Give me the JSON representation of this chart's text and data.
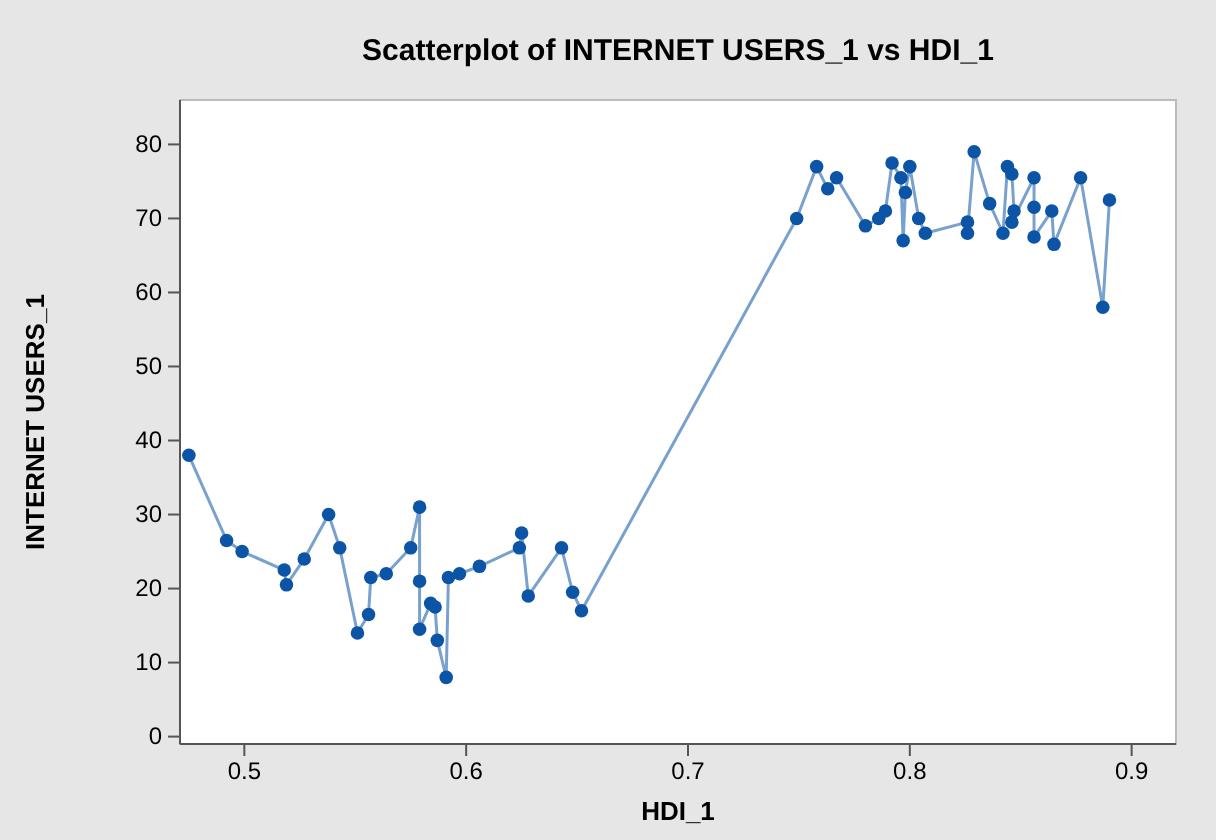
{
  "chart_data": {
    "type": "line",
    "title": "Scatterplot of INTERNET USERS_1 vs HDI_1",
    "xlabel": "HDI_1",
    "ylabel": "INTERNET USERS_1",
    "marker": "circle",
    "line_style": "solid",
    "grid": false,
    "xlim": [
      0.471,
      0.92
    ],
    "xticks": [
      {
        "value": 0.5,
        "label": "0.5"
      },
      {
        "value": 0.6,
        "label": "0.6"
      },
      {
        "value": 0.7,
        "label": "0.7"
      },
      {
        "value": 0.8,
        "label": "0.8"
      },
      {
        "value": 0.9,
        "label": "0.9"
      }
    ],
    "ylim": [
      -1,
      86
    ],
    "yticks": [
      0,
      10,
      20,
      30,
      40,
      50,
      60,
      70,
      80
    ],
    "series": [
      {
        "color": "#0b54a6",
        "x": [
          0.475,
          0.492,
          0.499,
          0.518,
          0.519,
          0.527,
          0.538,
          0.543,
          0.551,
          0.556,
          0.557,
          0.564,
          0.575,
          0.579,
          0.579,
          0.579,
          0.584,
          0.586,
          0.587,
          0.591,
          0.592,
          0.597,
          0.606,
          0.624,
          0.625,
          0.628,
          0.643,
          0.648,
          0.652,
          0.749,
          0.758,
          0.763,
          0.767,
          0.78,
          0.786,
          0.789,
          0.792,
          0.796,
          0.797,
          0.798,
          0.8,
          0.804,
          0.807,
          0.826,
          0.826,
          0.829,
          0.836,
          0.842,
          0.844,
          0.846,
          0.847,
          0.846,
          0.856,
          0.856,
          0.856,
          0.864,
          0.865,
          0.877,
          0.887,
          0.89
        ],
        "values": [
          38,
          26.5,
          25,
          22.5,
          20.5,
          24,
          30,
          25.5,
          14,
          16.5,
          21.5,
          22,
          25.5,
          31,
          21,
          14.5,
          18,
          17.5,
          13,
          8,
          21.5,
          22,
          23,
          25.5,
          27.5,
          19,
          25.5,
          19.5,
          17,
          70,
          77,
          74,
          75.5,
          69,
          70,
          71,
          77.5,
          75.5,
          67,
          73.5,
          77,
          70,
          68,
          69.5,
          68,
          79,
          72,
          68,
          77,
          76,
          71,
          69.5,
          75.5,
          71.5,
          67.5,
          71,
          66.5,
          75.5,
          58,
          72.5
        ]
      }
    ]
  }
}
